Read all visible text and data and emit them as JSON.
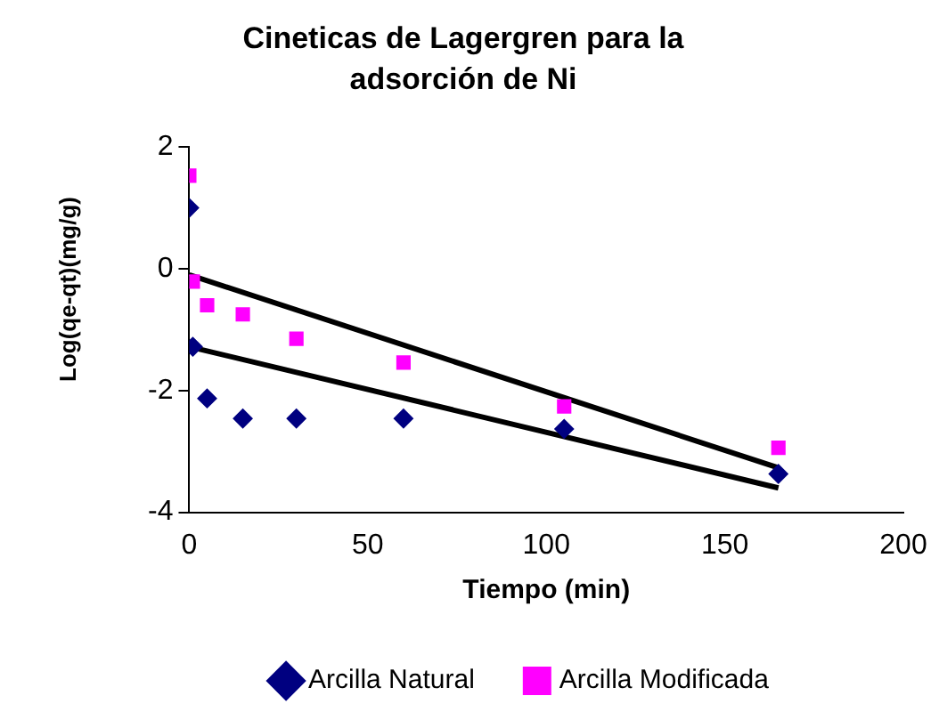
{
  "chart_data": {
    "type": "scatter",
    "title": "Cineticas de Lagergren para la adsorción de Ni",
    "xlabel": "Tiempo (min)",
    "ylabel": "Log(qe-qt)(mg/g)",
    "xlim": [
      0,
      200
    ],
    "xticks": [
      0,
      50,
      100,
      150,
      200
    ],
    "ylim": [
      -4,
      2
    ],
    "yticks": [
      -4,
      -2,
      0,
      2
    ],
    "grid": false,
    "legend": "bottom",
    "series": [
      {
        "name": "Arcilla Natural",
        "color": "#000080",
        "marker": "diamond",
        "x": [
          0,
          1,
          5,
          15,
          30,
          60,
          105,
          165
        ],
        "values": [
          1.0,
          -1.28,
          -2.13,
          -2.46,
          -2.46,
          -2.46,
          -2.63,
          -3.37
        ]
      },
      {
        "name": "Arcilla Modificada",
        "color": "#ff00ff",
        "marker": "square",
        "x": [
          0,
          1,
          5,
          15,
          30,
          60,
          105,
          165
        ],
        "values": [
          1.53,
          -0.21,
          -0.6,
          -0.75,
          -1.15,
          -1.54,
          -2.26,
          -2.94
        ]
      },
      {
        "type": "line",
        "color": "#000000",
        "marker": "none",
        "x": [
          0,
          165
        ],
        "values": [
          -0.1,
          -3.27
        ]
      },
      {
        "type": "line",
        "color": "#000000",
        "marker": "none",
        "x": [
          0,
          165
        ],
        "values": [
          -1.28,
          -3.6
        ]
      }
    ]
  }
}
